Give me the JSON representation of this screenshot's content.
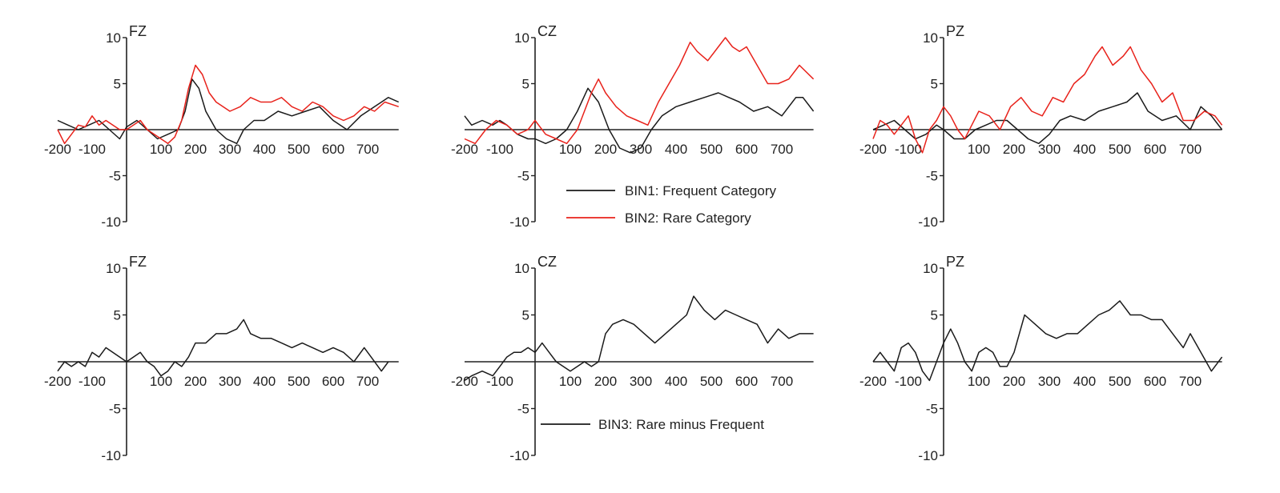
{
  "colors": {
    "BIN1": "#1a1a1a",
    "BIN2": "#e8221b",
    "BIN3": "#1a1a1a",
    "axis": "#222222"
  },
  "chart_data": [
    {
      "type": "line",
      "title": "FZ",
      "row": 1,
      "col": 1,
      "xlim": [
        -200,
        790
      ],
      "ylim": [
        -10,
        10
      ],
      "xticks": [
        -200,
        -100,
        100,
        200,
        300,
        400,
        500,
        600,
        700
      ],
      "yticks": [
        10,
        5,
        -5,
        -10
      ],
      "series": [
        {
          "name": "BIN1: Frequent Category",
          "color_key": "BIN1",
          "x": [
            -200,
            -170,
            -140,
            -110,
            -80,
            -50,
            -20,
            0,
            30,
            60,
            90,
            120,
            150,
            170,
            190,
            210,
            230,
            260,
            290,
            320,
            340,
            370,
            400,
            440,
            480,
            520,
            560,
            600,
            640,
            680,
            720,
            760,
            790
          ],
          "y": [
            1,
            0.5,
            0,
            0.5,
            1,
            0,
            -1,
            0.3,
            1,
            0,
            -1,
            -0.5,
            0,
            2,
            5.5,
            4.5,
            2,
            0,
            -1,
            -1.5,
            0,
            1,
            1,
            2,
            1.5,
            2,
            2.5,
            1,
            0,
            1.5,
            2.5,
            3.5,
            3
          ]
        },
        {
          "name": "BIN2: Rare Category",
          "color_key": "BIN2",
          "x": [
            -200,
            -180,
            -160,
            -140,
            -120,
            -100,
            -80,
            -60,
            -40,
            -20,
            0,
            20,
            40,
            60,
            80,
            100,
            120,
            140,
            160,
            180,
            200,
            220,
            240,
            260,
            280,
            300,
            330,
            360,
            390,
            420,
            450,
            480,
            510,
            540,
            570,
            600,
            630,
            660,
            690,
            720,
            750,
            790
          ],
          "y": [
            0,
            -1.5,
            -0.5,
            0.5,
            0.3,
            1.5,
            0.5,
            1,
            0.5,
            0,
            0,
            0.5,
            1,
            0,
            -0.5,
            -1,
            -1.5,
            -0.8,
            1,
            4.5,
            7,
            6,
            4,
            3,
            2.5,
            2,
            2.5,
            3.5,
            3,
            3,
            3.5,
            2.5,
            2,
            3,
            2.5,
            1.5,
            1,
            1.5,
            2.5,
            2,
            3,
            2.5
          ]
        }
      ]
    },
    {
      "type": "line",
      "title": "CZ",
      "row": 1,
      "col": 2,
      "xlim": [
        -200,
        790
      ],
      "ylim": [
        -10,
        10
      ],
      "xticks": [
        -200,
        -100,
        100,
        200,
        300,
        400,
        500,
        600,
        700
      ],
      "yticks": [
        10,
        5,
        -5,
        -10
      ],
      "series": [
        {
          "name": "BIN1: Frequent Category",
          "color_key": "BIN1",
          "x": [
            -200,
            -180,
            -150,
            -120,
            -100,
            -80,
            -50,
            -20,
            0,
            30,
            60,
            90,
            120,
            150,
            180,
            210,
            240,
            270,
            300,
            330,
            360,
            400,
            440,
            480,
            520,
            550,
            580,
            620,
            660,
            700,
            740,
            760,
            790
          ],
          "y": [
            1.5,
            0.5,
            1,
            0.5,
            1,
            0.5,
            -0.5,
            -1,
            -1,
            -1.5,
            -1,
            0,
            2,
            4.5,
            3,
            0,
            -2,
            -2.5,
            -2,
            0,
            1.5,
            2.5,
            3,
            3.5,
            4,
            3.5,
            3,
            2,
            2.5,
            1.5,
            3.5,
            3.5,
            2
          ]
        },
        {
          "name": "BIN2: Rare Category",
          "color_key": "BIN2",
          "x": [
            -200,
            -170,
            -140,
            -110,
            -80,
            -50,
            -20,
            0,
            30,
            60,
            90,
            120,
            140,
            160,
            180,
            200,
            230,
            260,
            290,
            320,
            350,
            380,
            410,
            440,
            460,
            490,
            520,
            540,
            560,
            580,
            600,
            630,
            660,
            690,
            720,
            750,
            790
          ],
          "y": [
            -1,
            -1.5,
            0,
            1,
            0.5,
            -0.5,
            0,
            1,
            -0.5,
            -1,
            -1.5,
            0,
            2,
            4,
            5.5,
            4,
            2.5,
            1.5,
            1,
            0.5,
            3,
            5,
            7,
            9.5,
            8.5,
            7.5,
            9,
            10,
            9,
            8.5,
            9,
            7,
            5,
            5,
            5.5,
            7,
            5.5
          ]
        }
      ]
    },
    {
      "type": "line",
      "title": "PZ",
      "row": 1,
      "col": 3,
      "xlim": [
        -200,
        790
      ],
      "ylim": [
        -10,
        10
      ],
      "xticks": [
        -200,
        -100,
        100,
        200,
        300,
        400,
        500,
        600,
        700
      ],
      "yticks": [
        10,
        5,
        -5,
        -10
      ],
      "series": [
        {
          "name": "BIN1: Frequent Category",
          "color_key": "BIN1",
          "x": [
            -200,
            -170,
            -140,
            -110,
            -80,
            -50,
            -20,
            0,
            30,
            60,
            90,
            120,
            150,
            180,
            210,
            240,
            270,
            300,
            330,
            360,
            400,
            440,
            480,
            520,
            550,
            580,
            620,
            660,
            700,
            730,
            760,
            790
          ],
          "y": [
            0,
            0.5,
            1,
            0,
            -1,
            -0.5,
            0.5,
            0,
            -1,
            -1,
            0,
            0.5,
            1,
            1,
            0,
            -1,
            -1.5,
            -0.5,
            1,
            1.5,
            1,
            2,
            2.5,
            3,
            4,
            2,
            1,
            1.5,
            0,
            2.5,
            1.5,
            0
          ]
        },
        {
          "name": "BIN2: Rare Category",
          "color_key": "BIN2",
          "x": [
            -200,
            -180,
            -160,
            -140,
            -120,
            -100,
            -80,
            -60,
            -40,
            -20,
            0,
            20,
            40,
            60,
            80,
            100,
            130,
            160,
            190,
            220,
            250,
            280,
            310,
            340,
            370,
            400,
            430,
            450,
            480,
            510,
            530,
            560,
            590,
            620,
            650,
            680,
            710,
            740,
            770,
            790
          ],
          "y": [
            -1,
            1,
            0.5,
            -0.5,
            0.5,
            1.5,
            -1,
            -2.5,
            0,
            1,
            2.5,
            1.5,
            0,
            -1,
            0.5,
            2,
            1.5,
            0,
            2.5,
            3.5,
            2,
            1.5,
            3.5,
            3,
            5,
            6,
            8,
            9,
            7,
            8,
            9,
            6.5,
            5,
            3,
            4,
            1,
            1,
            2,
            1.5,
            0.5
          ]
        }
      ]
    },
    {
      "type": "line",
      "title": "FZ",
      "row": 2,
      "col": 1,
      "xlim": [
        -200,
        790
      ],
      "ylim": [
        -10,
        10
      ],
      "xticks": [
        -200,
        -100,
        100,
        200,
        300,
        400,
        500,
        600,
        700
      ],
      "tick_labels": [
        "-200",
        "-100",
        "100",
        "200",
        "300",
        "400",
        "500",
        "600",
        "700"
      ],
      "yticks": [
        10,
        5,
        -5,
        -10
      ],
      "series": [
        {
          "name": "BIN3: Rare minus Frequent",
          "color_key": "BIN3",
          "x": [
            -200,
            -180,
            -160,
            -140,
            -120,
            -100,
            -80,
            -60,
            -40,
            -20,
            0,
            20,
            40,
            60,
            80,
            100,
            120,
            140,
            160,
            180,
            200,
            230,
            260,
            290,
            320,
            340,
            360,
            390,
            420,
            450,
            480,
            510,
            540,
            570,
            600,
            630,
            660,
            690,
            710,
            740,
            760
          ],
          "y": [
            -1,
            0,
            -0.5,
            0,
            -0.5,
            1,
            0.5,
            1.5,
            1,
            0.5,
            0,
            0.5,
            1,
            0,
            -0.5,
            -1.5,
            -1,
            0,
            -0.5,
            0.5,
            2,
            2,
            3,
            3,
            3.5,
            4.5,
            3,
            2.5,
            2.5,
            2,
            1.5,
            2,
            1.5,
            1,
            1.5,
            1,
            0,
            1.5,
            0.5,
            -1,
            0
          ]
        }
      ]
    },
    {
      "type": "line",
      "title": "CZ",
      "row": 2,
      "col": 2,
      "xlim": [
        -200,
        790
      ],
      "ylim": [
        -10,
        10
      ],
      "xticks": [
        -200,
        -100,
        100,
        200,
        300,
        400,
        500,
        600,
        700
      ],
      "yticks": [
        10,
        5,
        -5,
        -10
      ],
      "series": [
        {
          "name": "BIN3: Rare minus Frequent",
          "color_key": "BIN3",
          "x": [
            -200,
            -180,
            -150,
            -120,
            -100,
            -80,
            -60,
            -40,
            -20,
            0,
            20,
            40,
            60,
            80,
            100,
            120,
            140,
            160,
            180,
            200,
            220,
            250,
            280,
            310,
            340,
            370,
            400,
            430,
            450,
            480,
            510,
            540,
            570,
            600,
            630,
            660,
            690,
            720,
            750,
            790
          ],
          "y": [
            -2,
            -1.5,
            -1,
            -1.5,
            -0.5,
            0.5,
            1,
            1,
            1.5,
            1,
            2,
            1,
            0,
            -0.5,
            -1,
            -0.5,
            0,
            -0.5,
            0,
            3,
            4,
            4.5,
            4,
            3,
            2,
            3,
            4,
            5,
            7,
            5.5,
            4.5,
            5.5,
            5,
            4.5,
            4,
            2,
            3.5,
            2.5,
            3,
            3
          ]
        }
      ]
    },
    {
      "type": "line",
      "title": "PZ",
      "row": 2,
      "col": 3,
      "xlim": [
        -200,
        790
      ],
      "ylim": [
        -10,
        10
      ],
      "xticks": [
        -200,
        -100,
        100,
        200,
        300,
        400,
        500,
        600,
        700
      ],
      "yticks": [
        10,
        5,
        -5,
        -10
      ],
      "series": [
        {
          "name": "BIN3: Rare minus Frequent",
          "color_key": "BIN3",
          "x": [
            -200,
            -180,
            -160,
            -140,
            -120,
            -100,
            -80,
            -60,
            -40,
            -20,
            0,
            20,
            40,
            60,
            80,
            100,
            120,
            140,
            160,
            180,
            200,
            230,
            260,
            290,
            320,
            350,
            380,
            410,
            440,
            470,
            500,
            530,
            560,
            590,
            620,
            650,
            680,
            700,
            730,
            760,
            790
          ],
          "y": [
            0,
            1,
            0,
            -1,
            1.5,
            2,
            1,
            -1,
            -2,
            0,
            2,
            3.5,
            2,
            0,
            -1,
            1,
            1.5,
            1,
            -0.5,
            -0.5,
            1,
            5,
            4,
            3,
            2.5,
            3,
            3,
            4,
            5,
            5.5,
            6.5,
            5,
            5,
            4.5,
            4.5,
            3,
            1.5,
            3,
            1,
            -1,
            0.5
          ]
        }
      ]
    }
  ],
  "legends": [
    {
      "items": [
        {
          "label": "BIN1: Frequent Category",
          "color_key": "BIN1"
        },
        {
          "label": "BIN2: Rare Category",
          "color_key": "BIN2"
        }
      ]
    },
    {
      "items": [
        {
          "label": "BIN3: Rare minus Frequent",
          "color_key": "BIN3"
        }
      ]
    }
  ]
}
